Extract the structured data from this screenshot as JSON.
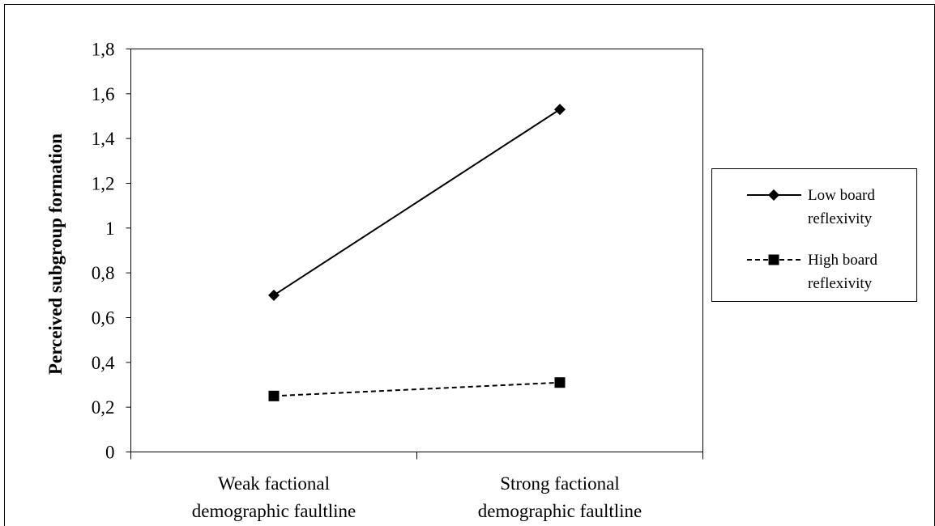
{
  "chart_data": {
    "type": "line",
    "categories": [
      "Weak factional demographic faultline",
      "Strong factional demographic faultline"
    ],
    "category_lines": [
      [
        "Weak factional",
        "demographic faultline"
      ],
      [
        "Strong factional",
        "demographic faultline"
      ]
    ],
    "series": [
      {
        "name": "Low board reflexivity",
        "name_lines": [
          "Low board",
          "reflexivity"
        ],
        "values": [
          0.7,
          1.53
        ],
        "marker": "diamond",
        "line_style": "solid",
        "color": "#000000"
      },
      {
        "name": "High board reflexivity",
        "name_lines": [
          "High board",
          "reflexivity"
        ],
        "values": [
          0.25,
          0.31
        ],
        "marker": "square",
        "line_style": "dashed",
        "color": "#000000"
      }
    ],
    "title": "",
    "xlabel": "",
    "ylabel": "Perceived subgroup formation",
    "ylim": [
      0,
      1.8
    ],
    "yticks": [
      0,
      0.2,
      0.4,
      0.6,
      0.8,
      1,
      1.2,
      1.4,
      1.6,
      1.8
    ],
    "ytick_labels": [
      "0",
      "0,2",
      "0,4",
      "0,6",
      "0,8",
      "1",
      "1,2",
      "1,4",
      "1,6",
      "1,8"
    ],
    "grid": false,
    "legend_position": "right"
  }
}
